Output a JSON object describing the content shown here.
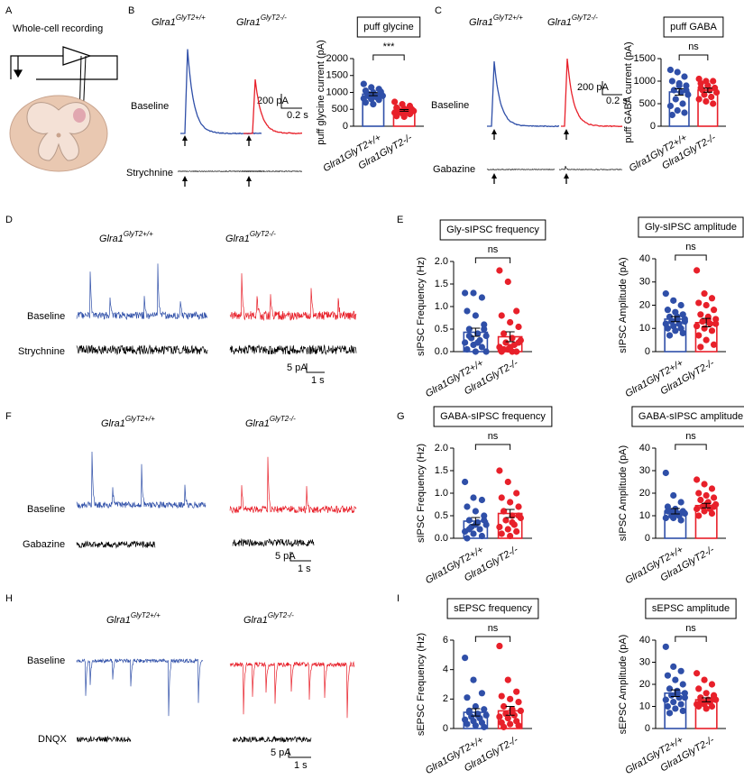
{
  "panel_labels": [
    "A",
    "B",
    "C",
    "D",
    "E",
    "F",
    "G",
    "H",
    "I"
  ],
  "panel_a": {
    "title": "Whole-cell recording"
  },
  "genotype": {
    "gene": "Glra1",
    "wt": "GlyT2+/+",
    "ko": "GlyT2-/-"
  },
  "traces": [
    {
      "conditions": [
        "Baseline",
        "Strychnine"
      ],
      "scale": [
        "200 pA",
        "0.2 s"
      ]
    },
    {
      "conditions": [
        "Baseline",
        "Gabazine"
      ],
      "scale": [
        "200 pA",
        "0.2 s"
      ]
    },
    {
      "conditions": [
        "Baseline",
        "Strychnine"
      ],
      "scale": [
        "5 pA",
        "1 s"
      ]
    },
    {
      "conditions": [
        "Baseline",
        "Gabazine"
      ],
      "scale": [
        "5 pA",
        "1 s"
      ]
    },
    {
      "conditions": [
        "Baseline",
        "DNQX"
      ],
      "scale": [
        "5 pA",
        "1 s"
      ]
    }
  ],
  "chart_data": [
    {
      "type": "bar",
      "title": "puff glycine",
      "y_label": "puff glycine current (pA)",
      "categories": [
        "Glra1GlyT2+/+",
        "Glra1GlyT2-/-"
      ],
      "colors": [
        "#2f4fa8",
        "#e8202a"
      ],
      "values": [
        950,
        470
      ],
      "errors": [
        45,
        25
      ],
      "points": [
        [
          1250,
          1150,
          1100,
          1050,
          1000,
          980,
          950,
          920,
          900,
          880,
          850,
          820,
          800,
          780,
          700,
          650,
          1020,
          960
        ],
        [
          720,
          650,
          600,
          550,
          520,
          500,
          480,
          460,
          450,
          430,
          420,
          400,
          380,
          360,
          300,
          280,
          500,
          470,
          440
        ]
      ],
      "significance": "***",
      "ylim": [
        0,
        2000
      ],
      "yticks": [
        0,
        500,
        1000,
        1500,
        2000
      ]
    },
    {
      "type": "bar",
      "title": "puff GABA",
      "y_label": "puff GABA current (pA)",
      "categories": [
        "Glra1GlyT2+/+",
        "Glra1GlyT2-/-"
      ],
      "colors": [
        "#2f4fa8",
        "#e8202a"
      ],
      "values": [
        760,
        800
      ],
      "errors": [
        70,
        45
      ],
      "points": [
        [
          1250,
          1200,
          1100,
          1000,
          950,
          900,
          800,
          750,
          700,
          600,
          500,
          450,
          350,
          300,
          250,
          900,
          800
        ],
        [
          1050,
          1000,
          1000,
          950,
          900,
          850,
          800,
          800,
          750,
          700,
          650,
          600,
          550,
          500,
          850,
          900
        ]
      ],
      "significance": "ns",
      "ylim": [
        0,
        1500
      ],
      "yticks": [
        0,
        500,
        1000,
        1500
      ]
    },
    {
      "type": "bar",
      "title": "Gly-sIPSC frequency",
      "y_label": "sIPSC Frequency (Hz)",
      "categories": [
        "Glra1GlyT2+/+",
        "Glra1GlyT2-/-"
      ],
      "colors": [
        "#2f4fa8",
        "#e8202a"
      ],
      "values": [
        0.43,
        0.33
      ],
      "errors": [
        0.09,
        0.11
      ],
      "points": [
        [
          1.3,
          1.3,
          1.2,
          0.9,
          0.8,
          0.6,
          0.5,
          0.4,
          0.35,
          0.3,
          0.25,
          0.2,
          0.15,
          0.1,
          0.05,
          0.0,
          0.5,
          0.35,
          0.2,
          0.0
        ],
        [
          1.8,
          1.55,
          0.9,
          0.8,
          0.65,
          0.55,
          0.4,
          0.3,
          0.25,
          0.2,
          0.15,
          0.1,
          0.05,
          0.0,
          0.0,
          0.1,
          0.2,
          0.05,
          0.0
        ]
      ],
      "significance": "ns",
      "ylim": [
        0,
        2
      ],
      "yticks": [
        {
          "value": 0,
          "label": "0.0"
        },
        0.5,
        {
          "value": 1,
          "label": "1.0"
        },
        1.5,
        {
          "value": 2,
          "label": "2.0"
        }
      ]
    },
    {
      "type": "bar",
      "title": "Gly-sIPSC amplitude",
      "y_label": "sIPSC Amplitude (pA)",
      "categories": [
        "Glra1GlyT2+/+",
        "Glra1GlyT2-/-"
      ],
      "colors": [
        "#2f4fa8",
        "#e8202a"
      ],
      "values": [
        14,
        12.5
      ],
      "errors": [
        1.1,
        1.8
      ],
      "points": [
        [
          25,
          22,
          20,
          18,
          17,
          16,
          15,
          14,
          14,
          13,
          12,
          12,
          11,
          10,
          10,
          9,
          8,
          7,
          15,
          13
        ],
        [
          35,
          25,
          23,
          21,
          20,
          18,
          16,
          15,
          14,
          13,
          12,
          11,
          10,
          9,
          7,
          5,
          3,
          2,
          14,
          12
        ]
      ],
      "significance": "ns",
      "ylim": [
        0,
        40
      ],
      "yticks": [
        0,
        10,
        20,
        30,
        40
      ]
    },
    {
      "type": "bar",
      "title": "GABA-sIPSC frequency",
      "y_label": "sIPSC Frequency (Hz)",
      "categories": [
        "Glra1GlyT2+/+",
        "Glra1GlyT2-/-"
      ],
      "colors": [
        "#2f4fa8",
        "#e8202a"
      ],
      "values": [
        0.38,
        0.55
      ],
      "errors": [
        0.08,
        0.09
      ],
      "points": [
        [
          1.25,
          0.9,
          0.85,
          0.7,
          0.6,
          0.5,
          0.4,
          0.35,
          0.3,
          0.25,
          0.2,
          0.15,
          0.1,
          0.05,
          0.0,
          0.3,
          0.4,
          0.2
        ],
        [
          1.5,
          1.25,
          1.0,
          0.9,
          0.8,
          0.7,
          0.6,
          0.5,
          0.45,
          0.4,
          0.3,
          0.25,
          0.2,
          0.15,
          0.1,
          0.05,
          0.5,
          0.6,
          0.35
        ]
      ],
      "significance": "ns",
      "ylim": [
        0,
        2
      ],
      "yticks": [
        {
          "value": 0,
          "label": "0.0"
        },
        0.5,
        {
          "value": 1,
          "label": "1.0"
        },
        1.5,
        {
          "value": 2,
          "label": "2.0"
        }
      ]
    },
    {
      "type": "bar",
      "title": "GABA-sIPSC amplitude",
      "y_label": "sIPSC Amplitude (pA)",
      "categories": [
        "Glra1GlyT2+/+",
        "Glra1GlyT2-/-"
      ],
      "colors": [
        "#2f4fa8",
        "#e8202a"
      ],
      "values": [
        12,
        14.5
      ],
      "errors": [
        1.2,
        1.0
      ],
      "points": [
        [
          29,
          19,
          16,
          14,
          13,
          12,
          12,
          11,
          11,
          10,
          10,
          9,
          9,
          8,
          12,
          11
        ],
        [
          26,
          24,
          22,
          20,
          19,
          18,
          17,
          16,
          15,
          14,
          13,
          13,
          12,
          11,
          10,
          15,
          14
        ]
      ],
      "significance": "ns",
      "ylim": [
        0,
        40
      ],
      "yticks": [
        0,
        10,
        20,
        30,
        40
      ]
    },
    {
      "type": "bar",
      "title": "sEPSC frequency",
      "y_label": "sEPSC Frequency (Hz)",
      "categories": [
        "Glra1GlyT2+/+",
        "Glra1GlyT2-/-"
      ],
      "colors": [
        "#2f4fa8",
        "#e8202a"
      ],
      "values": [
        1.1,
        1.2
      ],
      "errors": [
        0.25,
        0.3
      ],
      "points": [
        [
          4.8,
          3.3,
          2.4,
          2.1,
          1.5,
          1.3,
          1.2,
          1.0,
          0.9,
          0.8,
          0.7,
          0.6,
          0.5,
          0.4,
          0.3,
          0.2,
          0.1,
          1.1,
          0.9
        ],
        [
          5.6,
          3.3,
          2.5,
          2.2,
          2.0,
          1.8,
          1.5,
          1.3,
          1.2,
          1.0,
          0.9,
          0.8,
          0.7,
          0.5,
          0.4,
          0.3,
          0.2,
          0.1,
          1.1
        ]
      ],
      "significance": "ns",
      "ylim": [
        0,
        6
      ],
      "yticks": [
        0,
        2,
        4,
        6
      ]
    },
    {
      "type": "bar",
      "title": "sEPSC amplitude",
      "y_label": "sEPSC Amplitude (pA)",
      "categories": [
        "Glra1GlyT2+/+",
        "Glra1GlyT2-/-"
      ],
      "colors": [
        "#2f4fa8",
        "#e8202a"
      ],
      "values": [
        16,
        13
      ],
      "errors": [
        1.5,
        0.9
      ],
      "points": [
        [
          37,
          28,
          26,
          24,
          22,
          20,
          18,
          17,
          16,
          15,
          14,
          13,
          12,
          11,
          10,
          9,
          8,
          7,
          16,
          14
        ],
        [
          25,
          22,
          20,
          18,
          16,
          15,
          14,
          13,
          13,
          12,
          12,
          11,
          11,
          10,
          10,
          9,
          14,
          13
        ]
      ],
      "significance": "ns",
      "ylim": [
        0,
        40
      ],
      "yticks": [
        0,
        10,
        20,
        30,
        40
      ]
    }
  ]
}
